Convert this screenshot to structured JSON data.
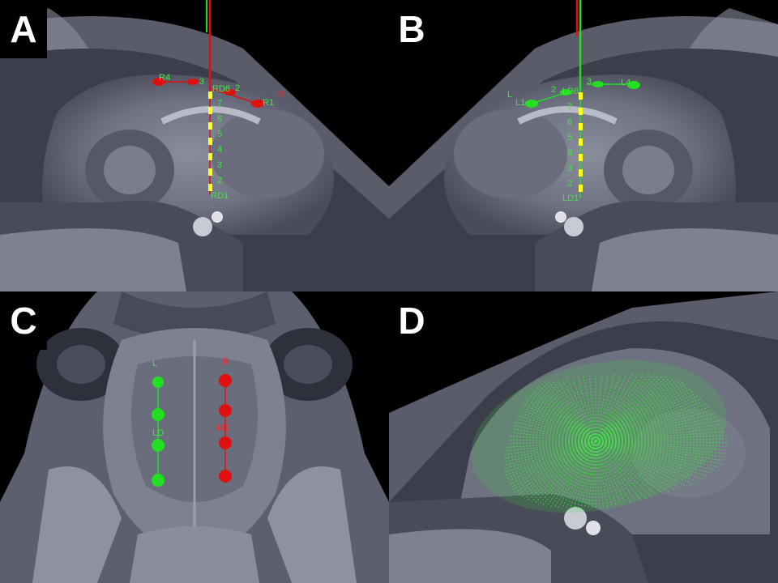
{
  "panels": {
    "a": {
      "letter": "A",
      "track_labels": [
        "RD8",
        "7",
        "6",
        "5",
        "4",
        "3",
        "2",
        "RD1"
      ],
      "branch_labels": [
        "R4",
        "3",
        "2",
        "R",
        "R1"
      ]
    },
    "b": {
      "letter": "B",
      "track_labels": [
        "LD8",
        "7",
        "6",
        "5",
        "4",
        "3",
        "2",
        "LD1"
      ],
      "branch_labels": [
        "2",
        "3",
        "L4",
        "L",
        "L1"
      ]
    },
    "c": {
      "letter": "C",
      "left_label": "L",
      "left_deep_label": "LD",
      "right_label": "R",
      "right_deep_label": "RD"
    },
    "d": {
      "letter": "D"
    }
  },
  "colors": {
    "green": "#3fe63f",
    "red": "#ff2020",
    "yellow": "#ffff20"
  }
}
